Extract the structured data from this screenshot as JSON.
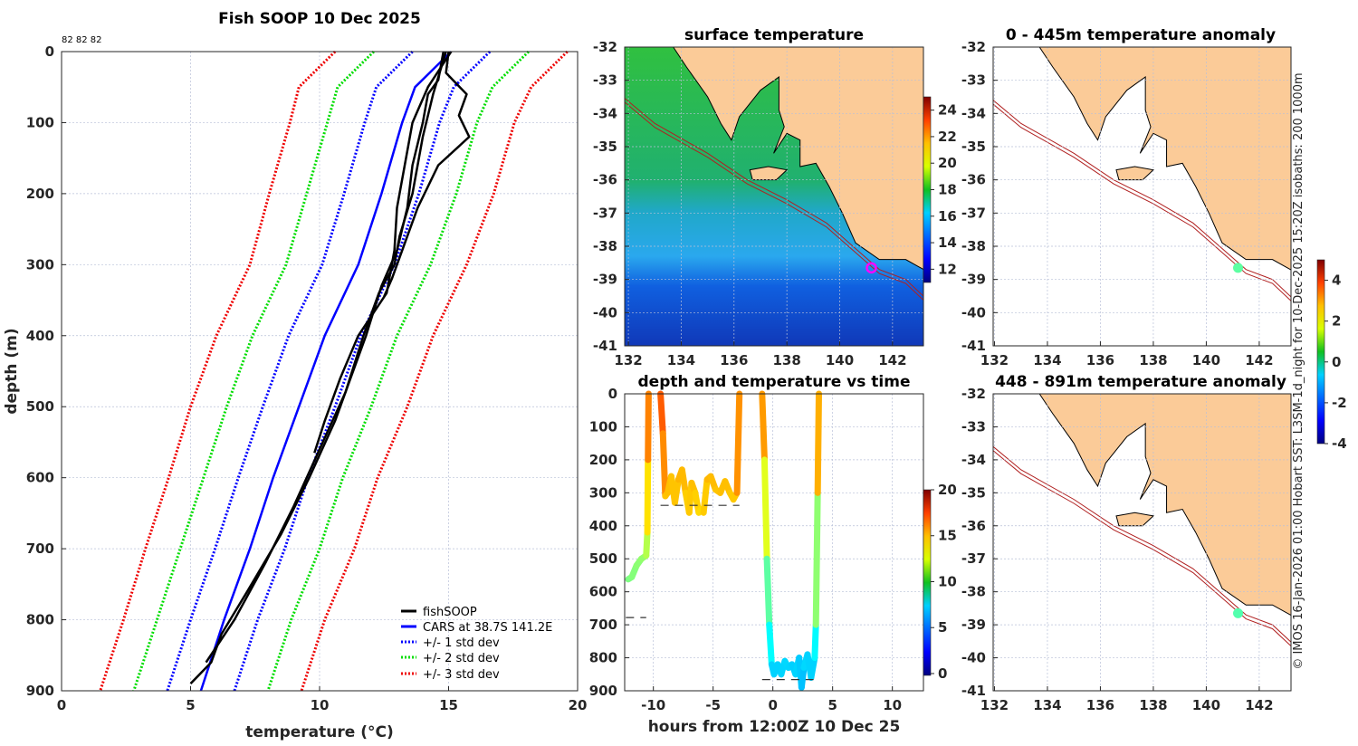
{
  "titles": {
    "main": "Fish SOOP 10 Dec 2025",
    "counts": "82 82 82",
    "sst": "surface temperature",
    "anom_top": "0 - 445m temperature anomaly",
    "time_panel": "depth and temperature vs time",
    "anom_bottom": "448 - 891m temperature anomaly",
    "credit": "© IMOS 16-Jan-2026 01:00 Hobart SST: L3SM-1d_night for 10-Dec-2025 15:20Z isobaths: 200  1000m"
  },
  "colors": {
    "land": "#fbcb98",
    "cars": "#0000ff",
    "std1": "#0000ff",
    "std2": "#00dd00",
    "std3": "#ee0000",
    "fish": "#000000",
    "isobath": "#b02020"
  },
  "chart_data": [
    {
      "type": "line",
      "title": "Fish SOOP 10 Dec 2025",
      "xlabel": "temperature (°C)",
      "ylabel": "depth (m)",
      "xlim": [
        0,
        20
      ],
      "ylim": [
        900,
        0
      ],
      "xticks": [
        "0",
        "5",
        "10",
        "15",
        "20"
      ],
      "yticks": [
        "0",
        "100",
        "200",
        "300",
        "400",
        "500",
        "600",
        "700",
        "800",
        "900"
      ],
      "legend": [
        "fishSOOP",
        "CARS at 38.7S 141.2E",
        "+/- 1 std dev",
        "+/- 2 std dev",
        "+/- 3 std dev"
      ],
      "legend_position": "bottom-right",
      "cars": {
        "depth": [
          0,
          50,
          100,
          200,
          300,
          400,
          500,
          600,
          700,
          800,
          900
        ],
        "temp": [
          15.1,
          13.7,
          13.2,
          12.4,
          11.5,
          10.2,
          9.2,
          8.2,
          7.3,
          6.3,
          5.4
        ]
      },
      "std_dev": [
        1.5,
        1.5,
        1.45,
        1.45,
        1.4,
        1.4,
        1.4,
        1.35,
        1.35,
        1.3,
        1.3
      ],
      "fishSOOP": [
        {
          "depth": [
            0,
            40,
            60,
            100,
            160,
            220,
            280,
            330,
            400,
            460,
            520,
            600,
            680,
            760,
            820,
            860,
            890
          ],
          "temp": [
            14.8,
            14.6,
            14.2,
            14.0,
            13.6,
            13.4,
            13.0,
            12.4,
            11.8,
            11.2,
            10.6,
            9.6,
            8.5,
            7.2,
            6.2,
            5.8,
            5.0
          ]
        },
        {
          "depth": [
            0,
            30,
            60,
            90,
            120,
            160,
            220,
            280,
            320,
            345
          ],
          "temp": [
            15.0,
            14.9,
            15.7,
            15.4,
            15.8,
            14.6,
            13.8,
            13.2,
            12.8,
            12.5
          ]
        },
        {
          "depth": [
            0,
            50,
            100,
            160,
            220,
            280,
            340,
            400,
            460,
            520,
            565
          ],
          "temp": [
            15.1,
            14.2,
            13.6,
            13.3,
            13.0,
            12.9,
            12.6,
            11.5,
            10.8,
            10.2,
            9.8
          ]
        },
        {
          "depth": [
            0,
            60,
            120,
            200,
            260,
            300,
            340,
            400,
            480,
            560,
            640,
            720,
            800,
            860
          ],
          "temp": [
            14.9,
            14.4,
            14.0,
            13.6,
            13.1,
            12.9,
            12.3,
            11.7,
            11.0,
            10.0,
            9.0,
            7.9,
            6.7,
            5.6
          ]
        }
      ]
    },
    {
      "type": "heatmap",
      "title": "surface temperature",
      "xticks": [
        "132",
        "134",
        "136",
        "138",
        "140",
        "142"
      ],
      "yticks": [
        "-32",
        "-33",
        "-34",
        "-35",
        "-36",
        "-37",
        "-38",
        "-39",
        "-40",
        "-41"
      ],
      "colorbar_ticks": [
        "12",
        "14",
        "16",
        "18",
        "20",
        "22",
        "24"
      ],
      "colorbar_range": [
        11,
        25
      ],
      "position": {
        "lon": 141.2,
        "lat": -38.65
      }
    },
    {
      "type": "line",
      "title": "depth and temperature vs time",
      "xlabel": "hours from 12:00Z 10 Dec 25",
      "xlim": [
        -12.4,
        12.6
      ],
      "ylim": [
        900,
        0
      ],
      "xticks": [
        "-10",
        "-5",
        "0",
        "5",
        "10"
      ],
      "yticks": [
        "0",
        "100",
        "200",
        "300",
        "400",
        "500",
        "600",
        "700",
        "800",
        "900"
      ],
      "colorbar_ticks": [
        "0",
        "5",
        "10",
        "15",
        "20"
      ],
      "colorbar_range": [
        -0.2,
        20
      ],
      "segments": [
        {
          "t": [
            -12.1,
            -11.8,
            -11.4,
            -11.0,
            -10.6,
            -10.5,
            -10.45,
            -10.4
          ],
          "depth": [
            562,
            555,
            520,
            500,
            490,
            420,
            200,
            0
          ],
          "temp": [
            9.8,
            9.9,
            10.1,
            10.2,
            10.4,
            11.5,
            14.5,
            15.3
          ]
        },
        {
          "t": [
            -9.4,
            -9.2,
            -9.0,
            -8.8,
            -8.5,
            -8.2,
            -7.9,
            -7.6,
            -7.3,
            -7.0,
            -6.8,
            -6.5,
            -6.2,
            -6.0,
            -5.8,
            -5.5,
            -5.2,
            -4.8,
            -4.4,
            -4.0,
            -3.6,
            -3.3,
            -3.0,
            -2.8
          ],
          "depth": [
            0,
            120,
            310,
            300,
            250,
            330,
            260,
            230,
            300,
            360,
            270,
            300,
            360,
            350,
            360,
            260,
            250,
            290,
            300,
            265,
            300,
            320,
            300,
            0
          ],
          "temp": [
            15.5,
            15.8,
            13.6,
            13.6,
            13.8,
            13.4,
            13.8,
            14.0,
            13.6,
            13.2,
            13.8,
            13.6,
            13.1,
            13.2,
            13.1,
            13.8,
            13.9,
            13.6,
            13.6,
            13.8,
            13.6,
            13.4,
            13.6,
            15.6
          ]
        },
        {
          "t": [
            -0.9,
            -0.7,
            -0.5,
            -0.3,
            -0.1,
            0.1,
            0.4,
            0.7,
            1.0,
            1.3,
            1.6,
            1.9,
            2.2,
            2.4,
            2.6,
            2.9,
            3.2,
            3.5,
            3.6,
            3.75,
            3.85
          ],
          "depth": [
            0,
            200,
            500,
            700,
            820,
            850,
            820,
            850,
            810,
            830,
            820,
            850,
            800,
            890,
            830,
            790,
            860,
            800,
            700,
            300,
            0
          ],
          "temp": [
            15.3,
            13.5,
            10.2,
            8.2,
            6.6,
            6.4,
            6.6,
            6.4,
            6.7,
            6.5,
            6.6,
            6.3,
            6.8,
            5.9,
            6.4,
            6.8,
            6.2,
            6.8,
            7.8,
            12.6,
            15.4
          ]
        }
      ],
      "bottom_depths": [
        {
          "t": [
            -12.3,
            -10.6
          ],
          "depth": 678
        },
        {
          "t": [
            -9.4,
            -2.8
          ],
          "depth": 338
        },
        {
          "t": [
            -0.9,
            3.4
          ],
          "depth": 866
        }
      ]
    },
    {
      "type": "heatmap",
      "title": "0 - 445m temperature anomaly",
      "xticks": [
        "132",
        "134",
        "136",
        "138",
        "140",
        "142"
      ],
      "yticks": [
        "-32",
        "-33",
        "-34",
        "-35",
        "-36",
        "-37",
        "-38",
        "-39",
        "-40",
        "-41"
      ],
      "colorbar_ticks": [
        "-4",
        "-2",
        "0",
        "2",
        "4"
      ],
      "colorbar_range": [
        -4,
        5
      ],
      "anomaly": 0.2
    },
    {
      "type": "heatmap",
      "title": "448 - 891m temperature anomaly",
      "xticks": [
        "132",
        "134",
        "136",
        "138",
        "140",
        "142"
      ],
      "yticks": [
        "-32",
        "-33",
        "-34",
        "-35",
        "-36",
        "-37",
        "-38",
        "-39",
        "-40",
        "-41"
      ],
      "anomaly": 0.1
    }
  ]
}
